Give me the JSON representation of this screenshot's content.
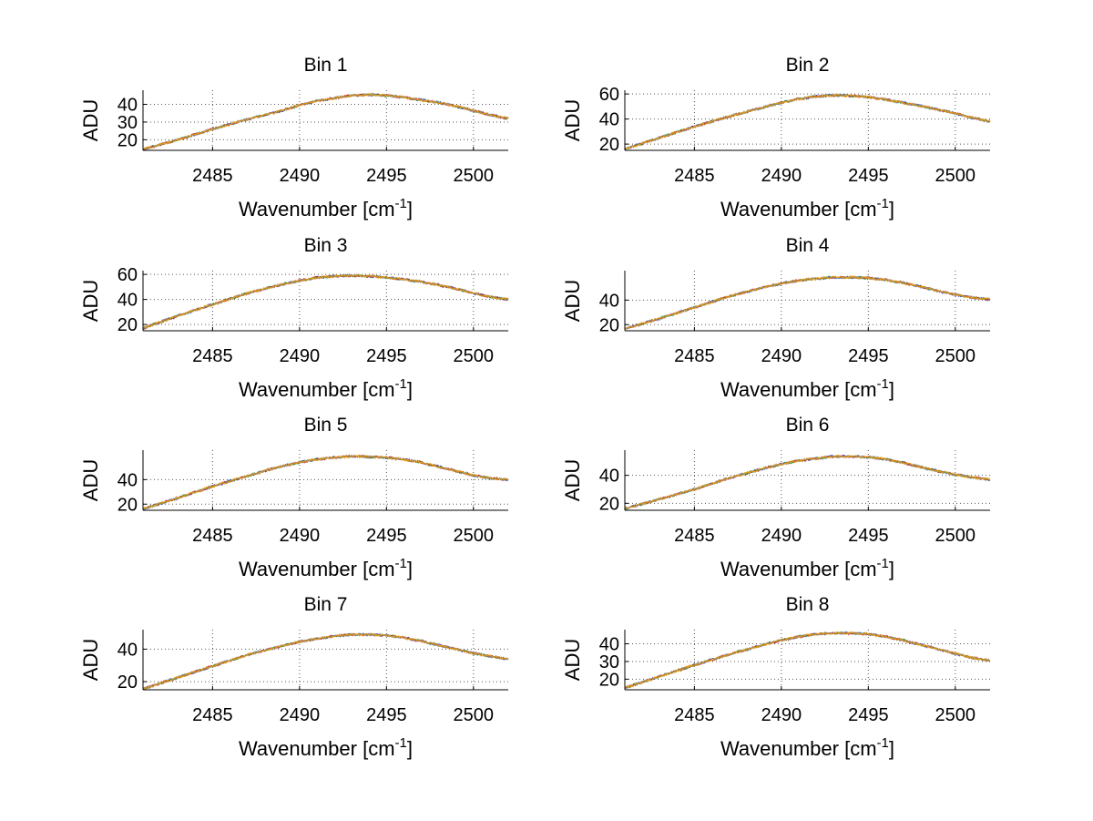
{
  "chart_data": [
    {
      "type": "line",
      "title": "Bin 1",
      "xlabel": "Wavenumber [cm",
      "xlabel_sup": "-1",
      "xlabel_end": "]",
      "ylabel": "ADU",
      "xlim": [
        2481,
        2502
      ],
      "ylim": [
        14,
        48
      ],
      "xticks": [
        2485,
        2490,
        2495,
        2500
      ],
      "yticks": [
        20,
        30,
        40
      ],
      "grid": true,
      "series_count": 5,
      "x": [
        2481,
        2483,
        2485,
        2487,
        2489,
        2490,
        2491,
        2492,
        2493,
        2494,
        2495,
        2496,
        2497,
        2498,
        2499,
        2500,
        2501,
        2502
      ],
      "values": [
        14.5,
        20,
        26,
        31.5,
        36.5,
        39.5,
        42,
        43.5,
        45,
        45.5,
        45,
        44,
        42.5,
        41,
        39,
        36.5,
        34,
        32
      ]
    },
    {
      "type": "line",
      "title": "Bin 2",
      "xlabel": "Wavenumber [cm",
      "xlabel_sup": "-1",
      "xlabel_end": "]",
      "ylabel": "ADU",
      "xlim": [
        2481,
        2502
      ],
      "ylim": [
        15,
        63
      ],
      "xticks": [
        2485,
        2490,
        2495,
        2500
      ],
      "yticks": [
        20,
        40,
        60
      ],
      "grid": true,
      "series_count": 5,
      "x": [
        2481,
        2483,
        2485,
        2487,
        2489,
        2490,
        2491,
        2492,
        2493,
        2494,
        2495,
        2496,
        2497,
        2498,
        2499,
        2500,
        2501,
        2502
      ],
      "values": [
        16,
        25,
        34,
        42,
        49.5,
        53,
        56,
        58,
        59,
        58.5,
        57.5,
        55.5,
        53,
        50.5,
        47.5,
        44.5,
        41,
        38
      ]
    },
    {
      "type": "line",
      "title": "Bin 3",
      "xlabel": "Wavenumber [cm",
      "xlabel_sup": "-1",
      "xlabel_end": "]",
      "ylabel": "ADU",
      "xlim": [
        2481,
        2502
      ],
      "ylim": [
        15,
        63
      ],
      "xticks": [
        2485,
        2490,
        2495,
        2500
      ],
      "yticks": [
        20,
        40,
        60
      ],
      "grid": true,
      "series_count": 5,
      "x": [
        2481,
        2483,
        2485,
        2487,
        2489,
        2490,
        2491,
        2492,
        2493,
        2494,
        2495,
        2496,
        2497,
        2498,
        2499,
        2500,
        2501,
        2502
      ],
      "values": [
        17,
        27,
        36,
        45,
        52,
        55,
        57.5,
        58.5,
        59,
        58.5,
        57.5,
        56,
        54,
        51.5,
        48.5,
        45,
        42,
        40
      ]
    },
    {
      "type": "line",
      "title": "Bin 4",
      "xlabel": "Wavenumber [cm",
      "xlabel_sup": "-1",
      "xlabel_end": "]",
      "ylabel": "ADU",
      "xlim": [
        2481,
        2502
      ],
      "ylim": [
        15,
        64
      ],
      "xticks": [
        2485,
        2490,
        2495,
        2500
      ],
      "yticks": [
        20,
        40
      ],
      "grid": true,
      "series_count": 5,
      "x": [
        2481,
        2483,
        2485,
        2487,
        2489,
        2490,
        2491,
        2492,
        2493,
        2494,
        2495,
        2496,
        2497,
        2498,
        2499,
        2500,
        2501,
        2502
      ],
      "values": [
        16.5,
        25,
        34,
        43,
        50.5,
        53.5,
        56,
        57.5,
        58.5,
        58.5,
        58,
        56.5,
        54,
        51,
        47.5,
        44.5,
        42,
        40.5
      ]
    },
    {
      "type": "line",
      "title": "Bin 5",
      "xlabel": "Wavenumber [cm",
      "xlabel_sup": "-1",
      "xlabel_end": "]",
      "ylabel": "ADU",
      "xlim": [
        2481,
        2502
      ],
      "ylim": [
        15,
        64
      ],
      "xticks": [
        2485,
        2490,
        2495,
        2500
      ],
      "yticks": [
        20,
        40
      ],
      "grid": true,
      "series_count": 5,
      "x": [
        2481,
        2483,
        2485,
        2487,
        2489,
        2490,
        2491,
        2492,
        2493,
        2494,
        2495,
        2496,
        2497,
        2498,
        2499,
        2500,
        2501,
        2502
      ],
      "values": [
        16,
        25,
        34.5,
        43,
        51,
        54,
        56.5,
        58,
        59,
        58.5,
        58,
        56.5,
        54,
        50.5,
        47,
        43.5,
        41,
        40
      ]
    },
    {
      "type": "line",
      "title": "Bin 6",
      "xlabel": "Wavenumber [cm",
      "xlabel_sup": "-1",
      "xlabel_end": "]",
      "ylabel": "ADU",
      "xlim": [
        2481,
        2502
      ],
      "ylim": [
        15,
        58
      ],
      "xticks": [
        2485,
        2490,
        2495,
        2500
      ],
      "yticks": [
        20,
        40
      ],
      "grid": true,
      "series_count": 5,
      "x": [
        2481,
        2483,
        2485,
        2487,
        2489,
        2490,
        2491,
        2492,
        2493,
        2494,
        2495,
        2496,
        2497,
        2498,
        2499,
        2500,
        2501,
        2502
      ],
      "values": [
        16,
        23,
        30,
        38,
        45,
        48,
        50.5,
        52,
        53.5,
        53.5,
        53,
        51.5,
        49,
        46,
        43,
        40.5,
        38.5,
        37
      ]
    },
    {
      "type": "line",
      "title": "Bin 7",
      "xlabel": "Wavenumber [cm",
      "xlabel_sup": "-1",
      "xlabel_end": "]",
      "ylabel": "ADU",
      "xlim": [
        2481,
        2502
      ],
      "ylim": [
        15,
        52
      ],
      "xticks": [
        2485,
        2490,
        2495,
        2500
      ],
      "yticks": [
        20,
        40
      ],
      "grid": true,
      "series_count": 5,
      "x": [
        2481,
        2483,
        2485,
        2487,
        2489,
        2490,
        2491,
        2492,
        2493,
        2494,
        2495,
        2496,
        2497,
        2498,
        2499,
        2500,
        2501,
        2502
      ],
      "values": [
        15.5,
        22.5,
        29.5,
        36.5,
        42,
        44.5,
        46.5,
        48,
        49,
        49,
        48.5,
        47,
        45,
        42.5,
        40,
        37.5,
        35.5,
        34
      ]
    },
    {
      "type": "line",
      "title": "Bin 8",
      "xlabel": "Wavenumber [cm",
      "xlabel_sup": "-1",
      "xlabel_end": "]",
      "ylabel": "ADU",
      "xlim": [
        2481,
        2502
      ],
      "ylim": [
        14,
        48
      ],
      "xticks": [
        2485,
        2490,
        2495,
        2500
      ],
      "yticks": [
        20,
        30,
        40
      ],
      "grid": true,
      "series_count": 5,
      "x": [
        2481,
        2483,
        2485,
        2487,
        2489,
        2490,
        2491,
        2492,
        2493,
        2494,
        2495,
        2496,
        2497,
        2498,
        2499,
        2500,
        2501,
        2502
      ],
      "values": [
        15,
        21.5,
        28,
        34,
        39.5,
        42,
        44,
        45.5,
        46,
        46,
        45.5,
        44,
        42,
        39.5,
        37,
        34.5,
        32,
        30.5
      ]
    }
  ],
  "colors": {
    "series": [
      "#1f3fd6",
      "#2ca02c",
      "#d62728",
      "#8c8c8c",
      "#e89b00"
    ],
    "axis": "#000000",
    "grid": "#555555"
  }
}
